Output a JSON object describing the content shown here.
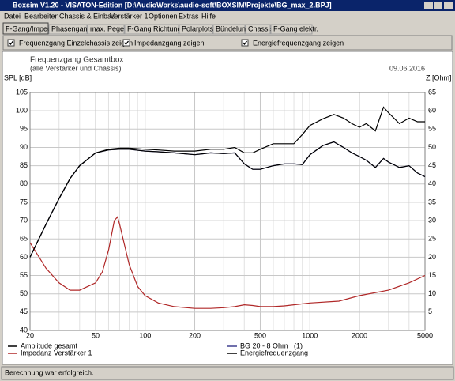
{
  "window": {
    "title": "Boxsim V1.20 - VISATON-Edition [D:\\AudioWorks\\audio-soft\\BOXSIM\\Projekte\\BG_max_2.BPJ]"
  },
  "menu": [
    "Datei",
    "Bearbeiten",
    "Chassis & Einbau",
    "Verstärker 1",
    "Optionen",
    "Extras",
    "Hilfe"
  ],
  "tabs": [
    "F-Gang/Imped.",
    "Phasengang",
    "max. Pegel",
    "F-Gang Richtungen",
    "Polarplots",
    "Bündelung",
    "Chassis",
    "F-Gang elektr."
  ],
  "options": [
    "Frequenzgang Einzelchassis zeigen",
    "Impedanzgang zeigen",
    "Energiefrequenzgang zeigen"
  ],
  "status": "Berechnung war erfolgreich.",
  "chart_data": {
    "type": "line",
    "title": "Frequenzgang Gesamtbox",
    "subtitle": "(alle Verstärker und Chassis)",
    "date": "09.06.2016",
    "ylabel": "SPL [dB]",
    "y2label": "Z [Ohm]",
    "legend_note": "(1)",
    "xscale": "log",
    "xlim": [
      20,
      5000
    ],
    "xticks": [
      20,
      50,
      100,
      200,
      500,
      1000,
      2000,
      5000
    ],
    "x_minor_grid": [
      30,
      40,
      60,
      70,
      80,
      90,
      300,
      400,
      600,
      700,
      800,
      900,
      3000,
      4000
    ],
    "ylim": [
      40,
      105
    ],
    "yticks": [
      40,
      45,
      50,
      55,
      60,
      65,
      70,
      75,
      80,
      85,
      90,
      95,
      100,
      105
    ],
    "y2lim": [
      0,
      65
    ],
    "y2ticks": [
      5,
      10,
      15,
      20,
      25,
      30,
      35,
      40,
      45,
      50,
      55,
      60,
      65
    ],
    "grid": true,
    "x": [
      20,
      25,
      30,
      35,
      40,
      50,
      60,
      70,
      80,
      100,
      120,
      150,
      200,
      250,
      300,
      350,
      400,
      450,
      500,
      600,
      700,
      800,
      900,
      1000,
      1200,
      1400,
      1600,
      1800,
      2000,
      2200,
      2500,
      2800,
      3000,
      3500,
      4000,
      4500,
      5000
    ],
    "series": [
      {
        "name": "BG 20 - 8 Ohm",
        "color": "#404090",
        "values": [
          60,
          69,
          76,
          81.5,
          85,
          88.5,
          89.3,
          89.5,
          89.5,
          89,
          88.8,
          88.5,
          88,
          88.5,
          88.3,
          88.5,
          85.5,
          84,
          84,
          85,
          85.5,
          85.5,
          85.3,
          88,
          90.5,
          91.5,
          90,
          88.5,
          87.5,
          86.5,
          84.5,
          87,
          86,
          84.5,
          85,
          83,
          82
        ]
      },
      {
        "name": "Amplitude gesamt",
        "color": "#000000",
        "values": [
          60,
          69,
          76,
          81.5,
          85,
          88.5,
          89.3,
          89.5,
          89.5,
          89,
          88.8,
          88.5,
          88,
          88.5,
          88.3,
          88.5,
          85.5,
          84,
          84,
          85,
          85.5,
          85.5,
          85.3,
          88,
          90.5,
          91.5,
          90,
          88.5,
          87.5,
          86.5,
          84.5,
          87,
          86,
          84.5,
          85,
          83,
          82
        ]
      },
      {
        "name": "Impedanz Verstärker 1",
        "color": "#b02828",
        "axis": "y2",
        "x": [
          20,
          25,
          30,
          35,
          40,
          50,
          55,
          60,
          65,
          68,
          70,
          80,
          90,
          100,
          120,
          150,
          200,
          250,
          300,
          350,
          400,
          450,
          500,
          600,
          700,
          800,
          1000,
          1500,
          2000,
          3000,
          4000,
          5000
        ],
        "values": [
          24,
          17,
          13,
          11,
          11,
          13,
          16,
          22,
          30,
          31,
          29,
          18,
          12,
          9.5,
          7.5,
          6.5,
          6,
          6,
          6.2,
          6.5,
          7,
          6.8,
          6.5,
          6.5,
          6.7,
          7,
          7.5,
          8,
          9.5,
          11,
          13,
          15
        ]
      },
      {
        "name": "Energiefrequenzgang",
        "color": "#000000",
        "values": [
          60,
          69,
          76,
          81.5,
          85,
          88.5,
          89.5,
          89.8,
          89.8,
          89.5,
          89.3,
          89,
          89,
          89.5,
          89.5,
          90,
          88.5,
          88.5,
          89.5,
          91,
          91,
          91,
          93.5,
          96,
          97.8,
          99,
          98,
          96.5,
          95.5,
          96.5,
          94.5,
          101,
          99.5,
          96.5,
          98,
          97,
          97
        ]
      }
    ]
  }
}
